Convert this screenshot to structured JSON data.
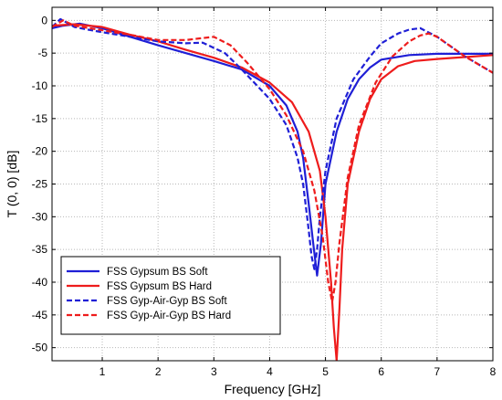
{
  "chart_data": {
    "type": "line",
    "xlabel": "Frequency [GHz]",
    "ylabel": "T (0, 0) [dB]",
    "xlim": [
      0.1,
      8
    ],
    "ylim": [
      -52,
      2
    ],
    "xticks": [
      1,
      2,
      3,
      4,
      5,
      6,
      7,
      8
    ],
    "yticks": [
      0,
      -5,
      -10,
      -15,
      -20,
      -25,
      -30,
      -35,
      -40,
      -45,
      -50
    ],
    "grid": true,
    "legend_position": "bottom-left",
    "series": [
      {
        "name": "FSS Gypsum BS Soft",
        "color": "#1f1fd6",
        "dash": "solid",
        "x": [
          0.1,
          0.3,
          0.6,
          1.0,
          1.5,
          2.0,
          2.5,
          3.0,
          3.5,
          4.0,
          4.3,
          4.5,
          4.6,
          4.7,
          4.78,
          4.85,
          4.92,
          5.0,
          5.2,
          5.4,
          5.6,
          5.8,
          6.0,
          6.5,
          7.0,
          7.5,
          8.0
        ],
        "y": [
          -1.2,
          -0.8,
          -0.5,
          -1.2,
          -2.5,
          -3.8,
          -5.0,
          -6.2,
          -7.5,
          -10.0,
          -13.0,
          -17.0,
          -21.0,
          -28.0,
          -34.0,
          -39.0,
          -34.0,
          -25.0,
          -17.0,
          -12.0,
          -9.0,
          -7.2,
          -6.0,
          -5.3,
          -5.1,
          -5.1,
          -5.1
        ]
      },
      {
        "name": "FSS Gypsum BS Hard",
        "color": "#ee1c1c",
        "dash": "solid",
        "x": [
          0.1,
          0.5,
          1.0,
          1.5,
          2.0,
          2.5,
          3.0,
          3.5,
          4.0,
          4.4,
          4.7,
          4.9,
          5.0,
          5.1,
          5.15,
          5.2,
          5.25,
          5.3,
          5.4,
          5.6,
          5.8,
          6.0,
          6.3,
          6.6,
          7.0,
          7.5,
          8.0
        ],
        "y": [
          -0.8,
          -0.6,
          -1.0,
          -2.2,
          -3.2,
          -4.5,
          -5.7,
          -7.2,
          -9.5,
          -12.5,
          -17.0,
          -23.0,
          -30.0,
          -40.0,
          -47.0,
          -52.0,
          -44.0,
          -35.0,
          -25.0,
          -17.0,
          -12.0,
          -9.0,
          -7.0,
          -6.2,
          -5.9,
          -5.6,
          -5.3
        ]
      },
      {
        "name": "FSS Gyp-Air-Gyp BS Soft",
        "color": "#1f1fd6",
        "dash": "dashed",
        "x": [
          0.1,
          0.25,
          0.5,
          0.8,
          1.0,
          1.5,
          2.0,
          2.5,
          2.8,
          3.2,
          3.5,
          4.0,
          4.3,
          4.5,
          4.6,
          4.7,
          4.75,
          4.8,
          4.85,
          4.9,
          5.0,
          5.2,
          5.5,
          5.8,
          6.0,
          6.3,
          6.5,
          6.7,
          7.0,
          7.5,
          8.0
        ],
        "y": [
          -1.0,
          0.2,
          -1.0,
          -1.5,
          -1.8,
          -2.5,
          -3.2,
          -3.5,
          -3.4,
          -5.0,
          -7.5,
          -12.0,
          -16.0,
          -21.0,
          -25.0,
          -32.0,
          -36.0,
          -38.0,
          -35.0,
          -30.0,
          -23.0,
          -15.0,
          -9.0,
          -5.5,
          -3.5,
          -2.0,
          -1.4,
          -1.2,
          -2.5,
          -5.5,
          -8.0
        ]
      },
      {
        "name": "FSS Gyp-Air-Gyp BS Hard",
        "color": "#ee1c1c",
        "dash": "dashed",
        "x": [
          0.1,
          0.3,
          0.5,
          1.0,
          1.5,
          2.0,
          2.5,
          3.0,
          3.3,
          3.6,
          4.0,
          4.3,
          4.6,
          4.8,
          4.95,
          5.05,
          5.12,
          5.18,
          5.25,
          5.4,
          5.6,
          5.9,
          6.2,
          6.5,
          6.7,
          6.85,
          7.0,
          7.5,
          8.0
        ],
        "y": [
          -1.0,
          0.0,
          -0.8,
          -1.5,
          -2.2,
          -3.0,
          -3.0,
          -2.5,
          -3.8,
          -6.5,
          -10.5,
          -14.5,
          -20.0,
          -26.0,
          -33.0,
          -40.0,
          -43.0,
          -40.0,
          -34.0,
          -24.0,
          -16.0,
          -9.5,
          -5.5,
          -3.2,
          -2.3,
          -2.0,
          -2.5,
          -5.5,
          -8.0
        ]
      }
    ]
  }
}
